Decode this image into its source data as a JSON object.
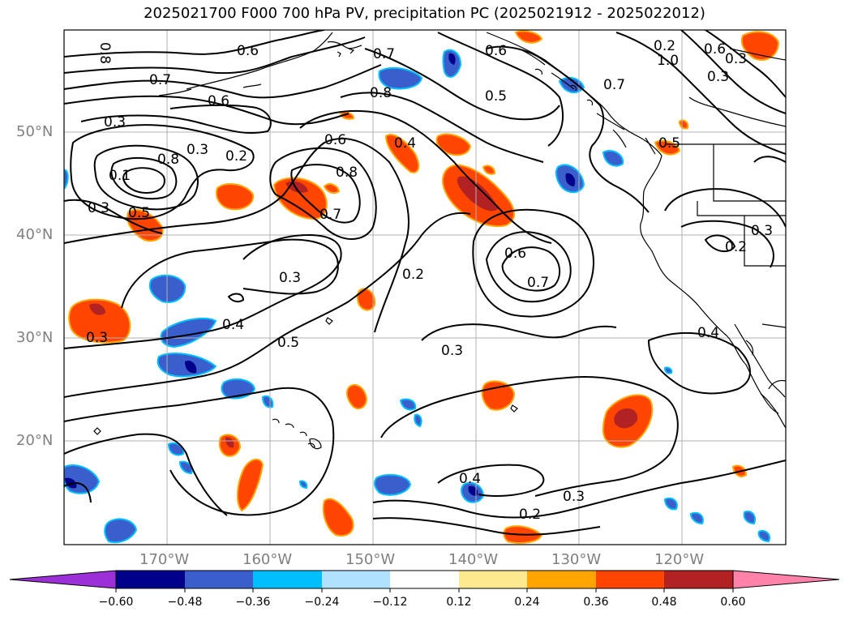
{
  "title": "2025021700 F000 700 hPa PV, precipitation PC (2025021912 - 2025022012)",
  "lat_labels": [
    "50°N",
    "40°N",
    "30°N",
    "20°N"
  ],
  "lon_labels": [
    "170°W",
    "160°W",
    "150°W",
    "140°W",
    "130°W",
    "120°W"
  ],
  "colorbar": {
    "ticks": [
      "−0.60",
      "−0.48",
      "−0.36",
      "−0.24",
      "−0.12",
      "0.12",
      "0.24",
      "0.36",
      "0.48",
      "0.60"
    ],
    "colors": [
      "#9b30d9",
      "#00008b",
      "#3a5fcd",
      "#00bfff",
      "#b0e2ff",
      "#ffffff",
      "#ffe98f",
      "#ffa500",
      "#ff4500",
      "#b22222",
      "#ff82ab"
    ]
  },
  "contour_labels": [
    "0.8",
    "0.6",
    "0.7",
    "0.6",
    "0.3",
    "0.3",
    "0.2",
    "0.1",
    "0.8",
    "0.6",
    "0.8",
    "0.7",
    "0.3",
    "0.5",
    "0.4",
    "0.2",
    "0.3",
    "0.3",
    "0.3",
    "0.5",
    "0.6",
    "0.7",
    "0.3",
    "0.2",
    "0.4",
    "0.4",
    "0.3",
    "0.2",
    "0.4",
    "0.7",
    "0.5",
    "0.6",
    "0.7",
    "1.0",
    "0.6",
    "0.3",
    "0.8",
    "0.5",
    "0.2",
    "0.3"
  ]
}
